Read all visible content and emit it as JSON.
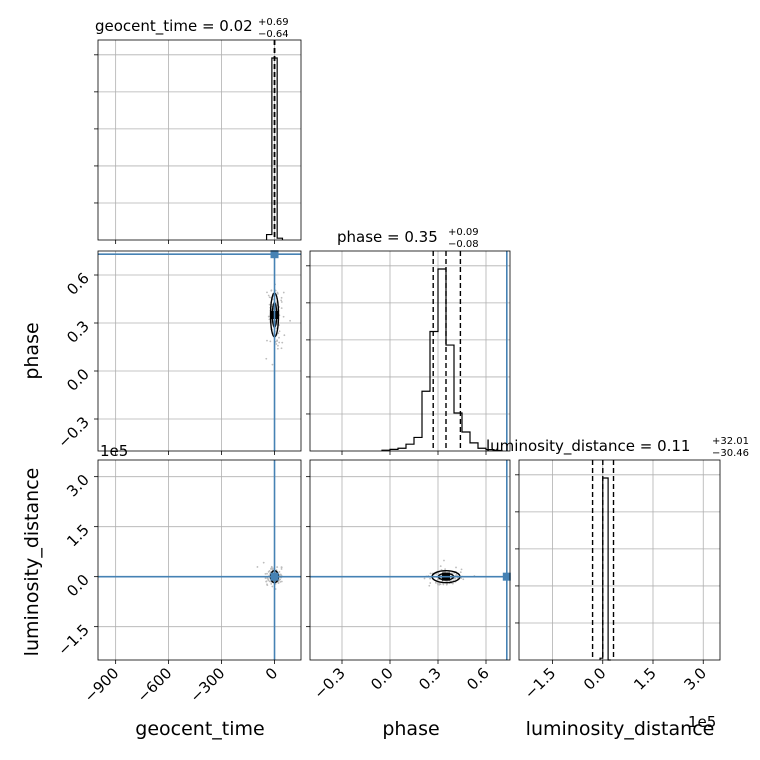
{
  "chart_data": {
    "type": "corner",
    "parameters": [
      "geocent_time",
      "phase",
      "luminosity_distance"
    ],
    "titles": [
      {
        "name": "geocent_time",
        "median": "0.02",
        "plus": "+0.69",
        "minus": "−0.64"
      },
      {
        "name": "phase",
        "median": "0.35",
        "plus": "+0.09",
        "minus": "−0.08"
      },
      {
        "name": "luminosity_distance",
        "median": "0.11",
        "plus": "+32.01",
        "minus": "−30.46"
      }
    ],
    "title_eq": " = ",
    "xlabels": [
      "geocent_time",
      "phase",
      "luminosity_distance"
    ],
    "ylabels": [
      "phase",
      "luminosity_distance"
    ],
    "offset_text": "1e5",
    "ticks": {
      "geocent_time": [
        "−900",
        "−600",
        "−300",
        "0"
      ],
      "phase": [
        "−0.3",
        "0.0",
        "0.3",
        "0.6"
      ],
      "luminosity_distance": [
        "−1.5",
        "0.0",
        "1.5",
        "3.0"
      ]
    },
    "ranges": {
      "geocent_time": [
        -1000,
        150
      ],
      "phase": [
        -0.5,
        0.75
      ],
      "luminosity_distance": [
        -250000,
        350000
      ]
    },
    "tick_values": {
      "geocent_time": [
        -900,
        -600,
        -300,
        0
      ],
      "phase": [
        -0.3,
        0.0,
        0.3,
        0.6
      ],
      "luminosity_distance": [
        -150000,
        0,
        150000,
        300000
      ]
    },
    "truths": {
      "geocent_time": 0,
      "phase": 0.73,
      "luminosity_distance": 0
    },
    "truth_color": "#4682b4",
    "hist_color": "#000000",
    "grid": true,
    "histograms": {
      "geocent_time": {
        "bins": [
          -45,
          -15,
          15,
          45
        ],
        "counts": [
          3,
          100,
          1
        ],
        "quantiles": [
          -0.62,
          0.02,
          0.71
        ]
      },
      "phase": {
        "bins": [
          -0.05,
          0.0,
          0.05,
          0.1,
          0.15,
          0.2,
          0.25,
          0.3,
          0.35,
          0.4,
          0.45,
          0.5,
          0.55,
          0.6,
          0.65,
          0.7
        ],
        "counts": [
          0.3,
          0.6,
          1.0,
          2.5,
          5.0,
          22.0,
          44.0,
          67.0,
          39.0,
          14.0,
          7.0,
          3.0,
          1.0,
          0.5,
          0.2
        ],
        "quantiles": [
          0.27,
          0.35,
          0.44
        ]
      },
      "luminosity_distance": {
        "bins": [
          -8000,
          0,
          8000,
          16000,
          24000
        ],
        "counts": [
          1,
          100,
          100,
          0
        ],
        "quantiles": [
          -30350,
          110,
          32120
        ]
      }
    },
    "scatter_centers": {
      "phase_vs_geocent_time": {
        "x": 0,
        "y": 0.35
      },
      "luminosity_distance_vs_geocent_time": {
        "x": 0,
        "y": 0
      },
      "luminosity_distance_vs_phase": {
        "x": 0.35,
        "y": 0
      }
    }
  }
}
